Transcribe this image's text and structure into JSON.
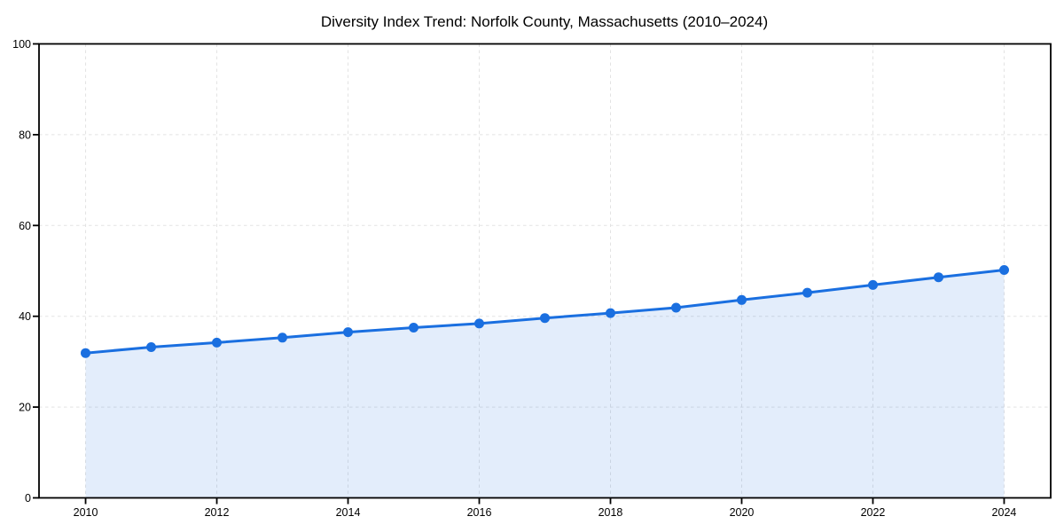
{
  "page": {
    "background": "#ffffff"
  },
  "chart_data": {
    "type": "line",
    "title": "Diversity Index Trend: Norfolk County, Massachusetts (2010–2024)",
    "xlabel": "",
    "ylabel": "",
    "x": [
      2010,
      2011,
      2012,
      2013,
      2014,
      2015,
      2016,
      2017,
      2018,
      2019,
      2020,
      2021,
      2022,
      2023,
      2024
    ],
    "series": [
      {
        "name": "Diversity Index",
        "values": [
          31.9,
          33.2,
          34.2,
          35.3,
          36.5,
          37.5,
          38.4,
          39.6,
          40.7,
          41.9,
          43.6,
          45.2,
          46.9,
          48.6,
          50.2
        ]
      }
    ],
    "xticks": [
      2010,
      2012,
      2014,
      2016,
      2018,
      2020,
      2022,
      2024
    ],
    "yticks": [
      0,
      20,
      40,
      60,
      80,
      100
    ],
    "xlim": [
      2009.29,
      2024.71
    ],
    "ylim": [
      0,
      100
    ],
    "grid": true,
    "grid_style": "dashed",
    "legend": false,
    "area_fill": true,
    "marker": "circle",
    "colors": {
      "line": "#1a6fe0",
      "fill_opacity": 0.12,
      "grid": "#e3e3e3",
      "axis": "#000000",
      "text": "#000000",
      "background": "#ffffff"
    }
  }
}
